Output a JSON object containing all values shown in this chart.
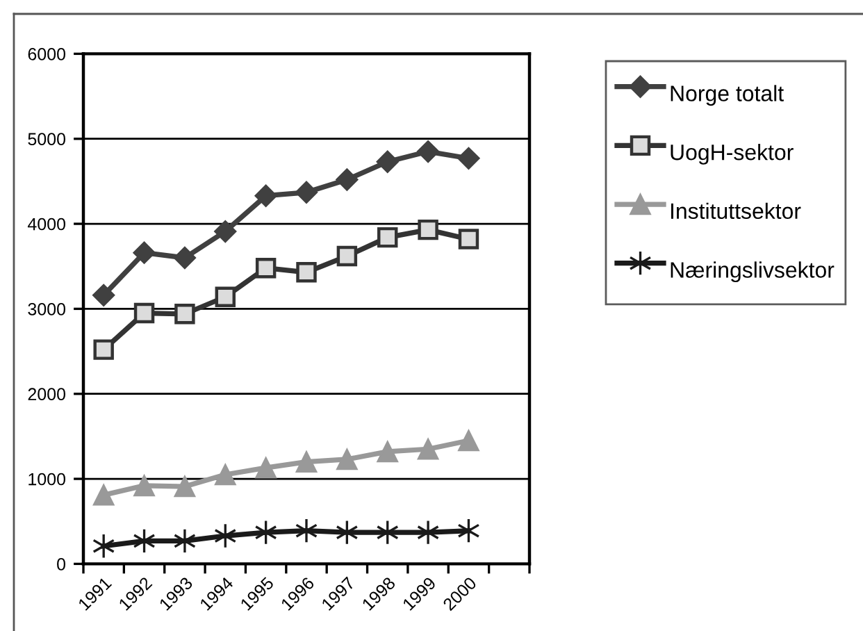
{
  "chart_data": {
    "type": "line",
    "categories": [
      "1991",
      "1992",
      "1993",
      "1994",
      "1995",
      "1996",
      "1997",
      "1998",
      "1999",
      "2000",
      null
    ],
    "ylim": [
      0,
      6000
    ],
    "yticks": [
      0,
      1000,
      2000,
      3000,
      4000,
      5000,
      6000
    ],
    "grid": "y",
    "legend": "right",
    "line_style": "solid",
    "series": [
      {
        "name": "Norge totalt",
        "color": "#404040",
        "marker": "diamond",
        "values": [
          3160,
          3660,
          3600,
          3910,
          4330,
          4370,
          4520,
          4730,
          4850,
          4770,
          null
        ]
      },
      {
        "name": "UogH-sektor",
        "color": "#333333",
        "marker": "square",
        "values": [
          2520,
          2950,
          2940,
          3140,
          3480,
          3430,
          3620,
          3840,
          3930,
          3820,
          null
        ]
      },
      {
        "name": "Instituttsektor",
        "color": "#999999",
        "marker": "triangle",
        "values": [
          810,
          920,
          910,
          1050,
          1130,
          1200,
          1230,
          1320,
          1350,
          1450,
          null
        ]
      },
      {
        "name": "Næringslivsektor",
        "color": "#1a1a1a",
        "marker": "cross",
        "values": [
          210,
          270,
          270,
          330,
          370,
          390,
          370,
          370,
          370,
          390,
          null
        ]
      }
    ]
  }
}
